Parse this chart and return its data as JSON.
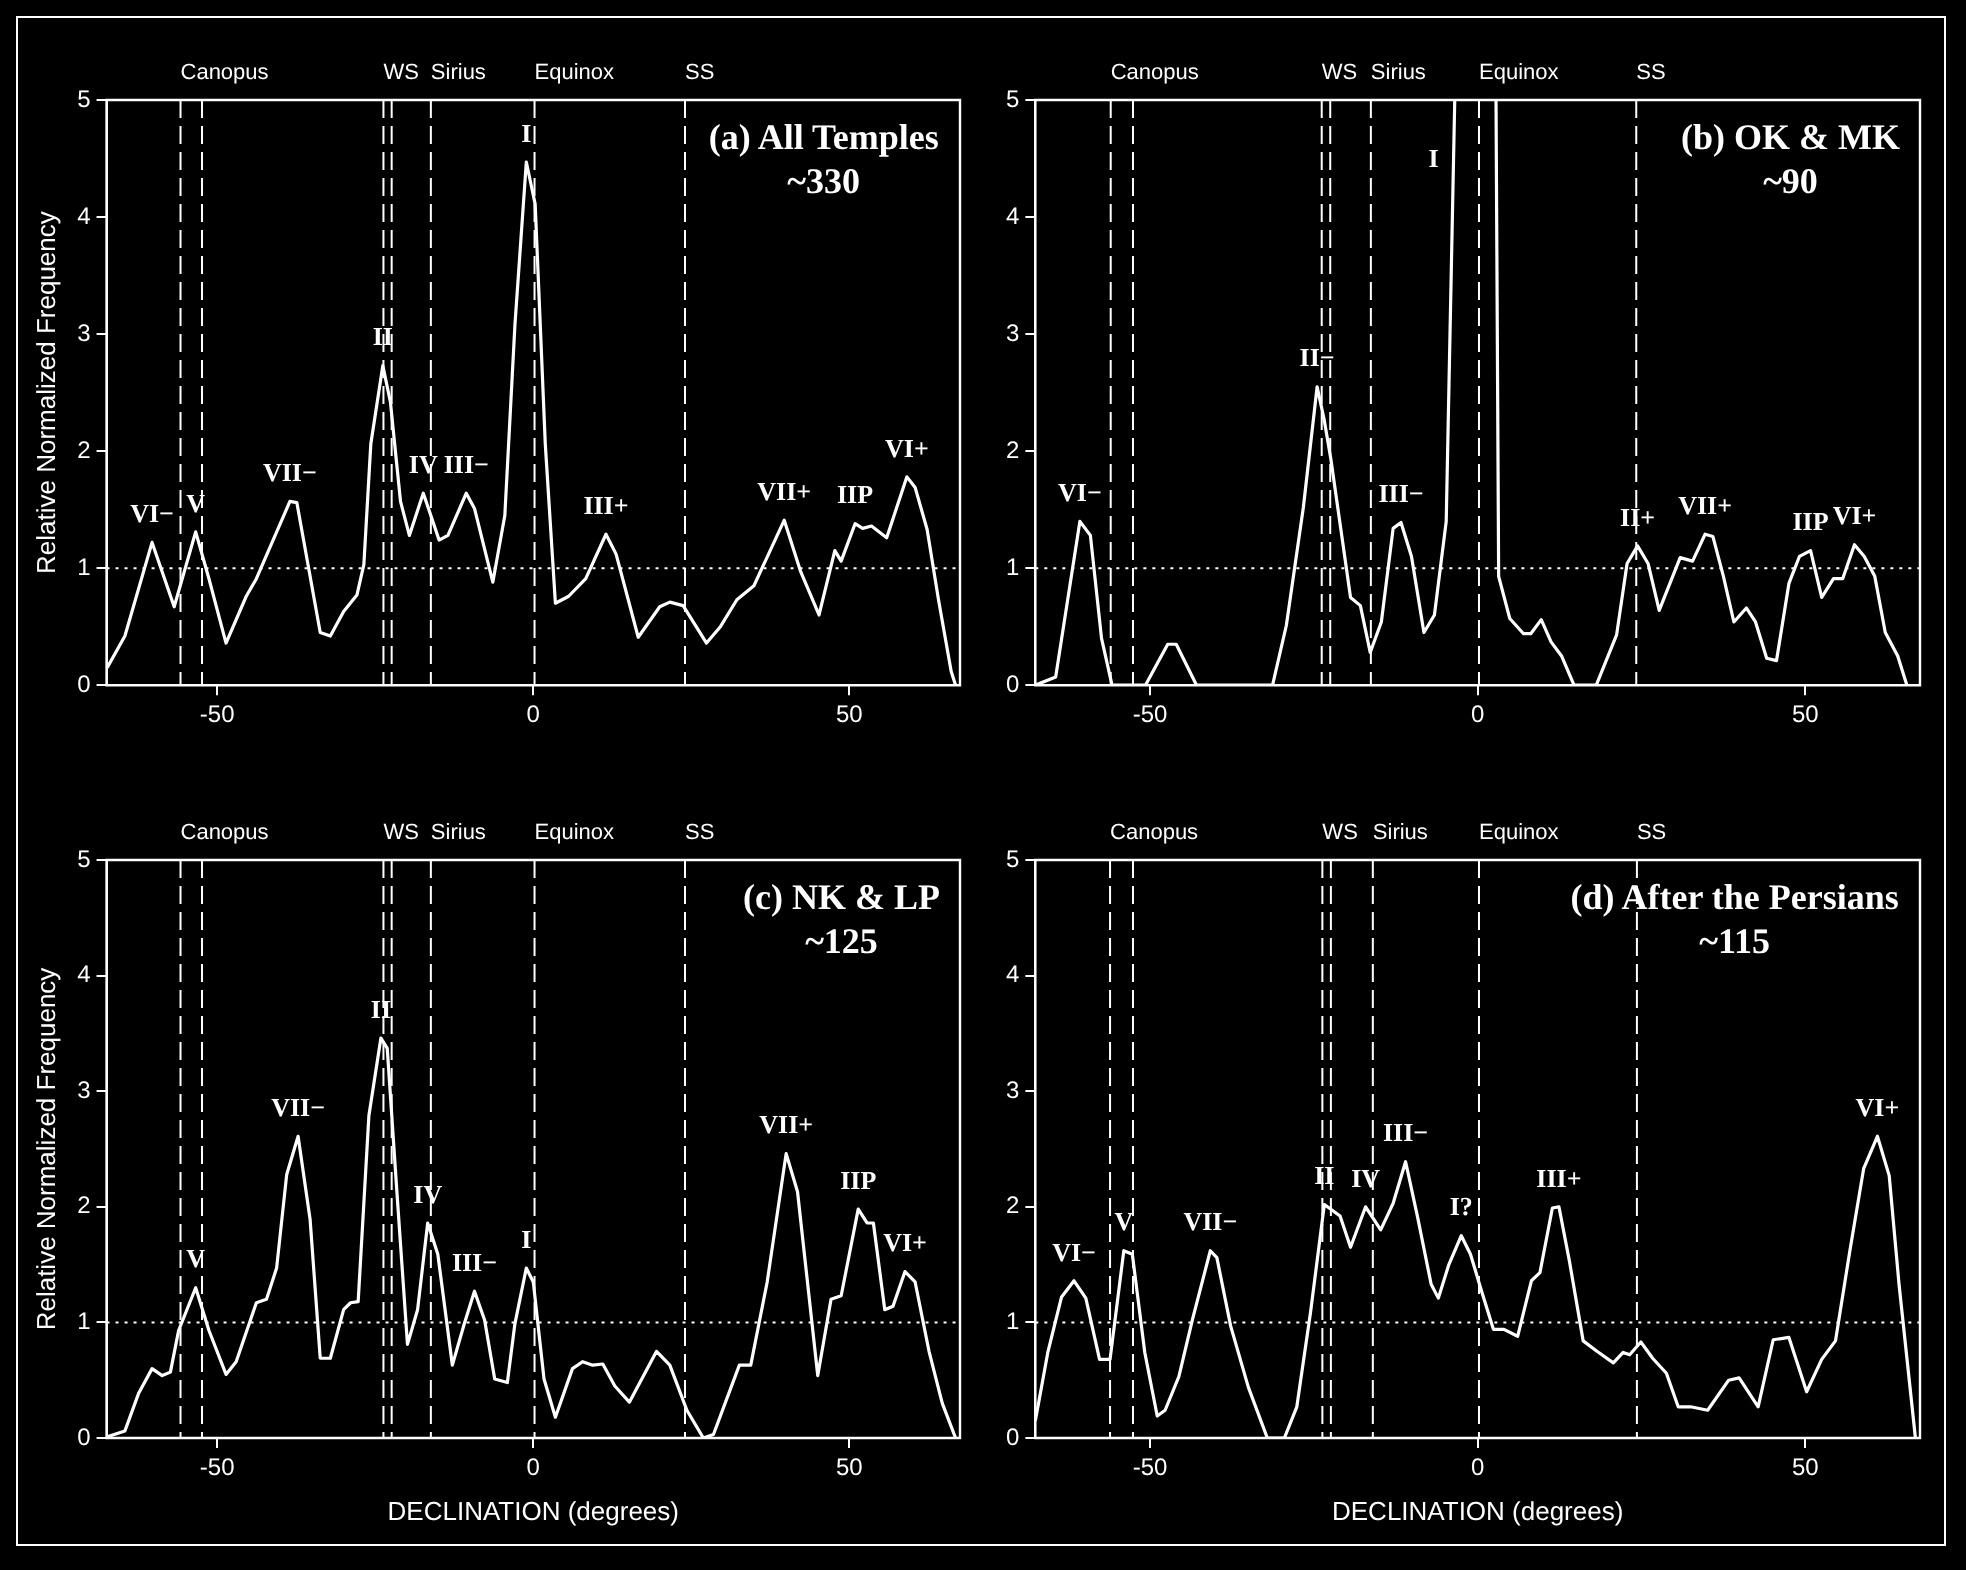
{
  "chart_data": [
    {
      "type": "line",
      "title": "(a) All Temples",
      "subtitle": "~330",
      "ylabel": "Relative Normalized Frequency",
      "xlim": [
        -67.5,
        67.5
      ],
      "xticks": [
        -50,
        0,
        50
      ],
      "ylim": [
        0,
        5
      ],
      "yticks": [
        0,
        1,
        2,
        3,
        4,
        5
      ],
      "series": [
        {
          "color": "#ffffff",
          "x": [
            -67.4,
            -64.6,
            -60.3,
            -56.8,
            -53.4,
            -51.3,
            -48.6,
            -45.4,
            -43.8,
            -38.5,
            -37.4,
            -33.7,
            -32.1,
            -30,
            -27.9,
            -26.8,
            -25.7,
            -23.8,
            -22.6,
            -21,
            -19.6,
            -17.4,
            -16.2,
            -14.9,
            -13.5,
            -10.6,
            -9.3,
            -6.4,
            -4.5,
            -2.9,
            -1.1,
            0.3,
            1.9,
            3.5,
            5.6,
            8.3,
            11.5,
            13.1,
            16.6,
            20,
            21.6,
            23.7,
            27.4,
            29.6,
            32.2,
            34.9,
            39.7,
            42.3,
            45.2,
            47.7,
            48.7,
            50.9,
            52.1,
            53.5,
            55.9,
            59.1,
            60.4,
            62.3,
            64.1,
            66.1,
            66.8
          ],
          "values": [
            0.15,
            0.42,
            1.22,
            0.67,
            1.31,
            0.91,
            0.36,
            0.76,
            0.91,
            1.57,
            1.56,
            0.45,
            0.42,
            0.63,
            0.77,
            1.03,
            2.06,
            2.73,
            2.42,
            1.57,
            1.28,
            1.64,
            1.45,
            1.24,
            1.28,
            1.64,
            1.51,
            0.88,
            1.45,
            3.08,
            4.47,
            4.11,
            2.06,
            0.7,
            0.76,
            0.91,
            1.29,
            1.12,
            0.41,
            0.67,
            0.71,
            0.68,
            0.36,
            0.5,
            0.73,
            0.85,
            1.41,
            0.97,
            0.6,
            1.15,
            1.06,
            1.38,
            1.34,
            1.36,
            1.26,
            1.78,
            1.69,
            1.33,
            0.73,
            0.12,
            0
          ]
        }
      ],
      "ref_lines": [
        {
          "axis": "x",
          "value": -55.8,
          "label": "Canopus",
          "line_style": "dashed"
        },
        {
          "axis": "x",
          "value": -52.4,
          "line_style": "dashed"
        },
        {
          "axis": "x",
          "value": -23.7,
          "label": "WS",
          "line_style": "dashed"
        },
        {
          "axis": "x",
          "value": -22.4,
          "line_style": "dashed"
        },
        {
          "axis": "x",
          "value": -16.2,
          "label": "Sirius",
          "line_style": "dashed"
        },
        {
          "axis": "x",
          "value": 0.2,
          "label": "Equinox",
          "line_style": "dashed"
        },
        {
          "axis": "x",
          "value": 24,
          "label": "SS",
          "line_style": "dashed"
        },
        {
          "axis": "y",
          "value": 1,
          "line_style": "dotted"
        }
      ],
      "annotations": [
        {
          "text": "VI−",
          "x": -60.3,
          "y": 1.22
        },
        {
          "text": "V",
          "x": -53.4,
          "y": 1.31
        },
        {
          "text": "VII−",
          "x": -38.5,
          "y": 1.57
        },
        {
          "text": "II",
          "x": -23.8,
          "y": 2.73
        },
        {
          "text": "IV",
          "x": -17.4,
          "y": 1.64
        },
        {
          "text": "III−",
          "x": -10.6,
          "y": 1.64
        },
        {
          "text": "I",
          "x": -1.1,
          "y": 4.47
        },
        {
          "text": "III+",
          "x": 11.5,
          "y": 1.29
        },
        {
          "text": "VII+",
          "x": 39.7,
          "y": 1.41
        },
        {
          "text": "IIP",
          "x": 50.9,
          "y": 1.38
        },
        {
          "text": "VI+",
          "x": 59.1,
          "y": 1.78
        }
      ]
    },
    {
      "type": "line",
      "title": "(b) OK & MK",
      "subtitle": "~90",
      "xlim": [
        -67.5,
        67.5
      ],
      "xticks": [
        -50,
        0,
        50
      ],
      "ylim": [
        0,
        5
      ],
      "yticks": [
        0,
        1,
        2,
        3,
        4,
        5
      ],
      "series": [
        {
          "color": "#ffffff",
          "x": [
            -67.5,
            -64.4,
            -60.7,
            -59.1,
            -57.4,
            -55.8,
            -50.7,
            -47.3,
            -46,
            -42.9,
            -31.3,
            -29.2,
            -26.6,
            -24.5,
            -23.4,
            -22.4,
            -19.4,
            -17.9,
            -16.4,
            -14.7,
            -12.9,
            -11.7,
            -10.1,
            -8.2,
            -6.6,
            -4.8,
            -3.5,
            0,
            2.8,
            3.2,
            4.9,
            7,
            8.1,
            9.7,
            11.2,
            12.8,
            14.7,
            18.1,
            21.2,
            22.8,
            24.4,
            26,
            27.7,
            30.9,
            32.8,
            34.7,
            35.9,
            37.5,
            39.1,
            41,
            42.4,
            44.1,
            45.6,
            47.5,
            49.1,
            50.8,
            52.5,
            54.3,
            55.7,
            57.5,
            59,
            60.6,
            62.2,
            64.1,
            65.5
          ],
          "values": [
            0,
            0.07,
            1.4,
            1.28,
            0.4,
            0,
            0,
            0.35,
            0.35,
            0,
            0,
            0.51,
            1.52,
            2.55,
            2.26,
            1.93,
            0.75,
            0.68,
            0.28,
            0.54,
            1.34,
            1.39,
            1.1,
            0.45,
            0.6,
            1.4,
            5,
            null,
            5,
            0.93,
            0.57,
            0.44,
            0.44,
            0.56,
            0.37,
            0.25,
            0,
            0,
            0.43,
            1.04,
            1.19,
            1.04,
            0.64,
            1.09,
            1.06,
            1.29,
            1.27,
            0.93,
            0.54,
            0.66,
            0.54,
            0.23,
            0.21,
            0.87,
            1.1,
            1.15,
            0.75,
            0.91,
            0.91,
            1.2,
            1.1,
            0.93,
            0.45,
            0.25,
            0
          ]
        }
      ],
      "ref_lines": [
        {
          "axis": "x",
          "value": -56,
          "label": "Canopus",
          "line_style": "dashed"
        },
        {
          "axis": "x",
          "value": -52.6,
          "line_style": "dashed"
        },
        {
          "axis": "x",
          "value": -23.8,
          "label": "WS",
          "line_style": "dashed"
        },
        {
          "axis": "x",
          "value": -22.5,
          "line_style": "dashed"
        },
        {
          "axis": "x",
          "value": -16.3,
          "label": "Sirius",
          "line_style": "dashed"
        },
        {
          "axis": "x",
          "value": 0.2,
          "label": "Equinox",
          "line_style": "dashed"
        },
        {
          "axis": "x",
          "value": 24.2,
          "label": "SS",
          "line_style": "dashed"
        },
        {
          "axis": "y",
          "value": 1,
          "line_style": "dotted"
        }
      ],
      "annotations": [
        {
          "text": "VI−",
          "x": -60.7,
          "y": 1.4
        },
        {
          "text": "II−",
          "x": -24.5,
          "y": 2.55
        },
        {
          "text": "III−",
          "x": -11.7,
          "y": 1.39
        },
        {
          "text": "I",
          "x": -3.5,
          "y": 5
        },
        {
          "text": "II+",
          "x": 24.4,
          "y": 1.19
        },
        {
          "text": "VII+",
          "x": 34.7,
          "y": 1.29
        },
        {
          "text": "IIP",
          "x": 50.8,
          "y": 1.15
        },
        {
          "text": "VI+",
          "x": 57.5,
          "y": 1.2
        }
      ]
    },
    {
      "type": "line",
      "title": "(c) NK & LP",
      "subtitle": "~125",
      "xlabel": "DECLINATION (degrees)",
      "ylabel": "Relative Normalized Frequency",
      "xlim": [
        -67.5,
        67.5
      ],
      "xticks": [
        -50,
        0,
        50
      ],
      "ylim": [
        0,
        5
      ],
      "yticks": [
        0,
        1,
        2,
        3,
        4,
        5
      ],
      "series": [
        {
          "color": "#ffffff",
          "x": [
            -67.4,
            -64.6,
            -62.4,
            -60.3,
            -58.7,
            -57.4,
            -56.1,
            -53.4,
            -51.3,
            -48.6,
            -47,
            -43.8,
            -42.2,
            -40.6,
            -39,
            -37.2,
            -35.3,
            -33.7,
            -32.1,
            -30,
            -28.9,
            -27.7,
            -26,
            -24.1,
            -23.1,
            -21.5,
            -19.9,
            -18.3,
            -16.7,
            -15.1,
            -12.8,
            -10.9,
            -9.3,
            -7.7,
            -6.1,
            -4.1,
            -2.9,
            -1.1,
            0,
            1.7,
            3.5,
            6.2,
            7.8,
            9.4,
            11,
            12.9,
            15.2,
            19.5,
            21.6,
            24.3,
            26.9,
            28.5,
            32.6,
            34.4,
            37,
            40,
            41.8,
            45,
            47.1,
            48.7,
            51.4,
            52.8,
            53.8,
            55.6,
            56.9,
            58.8,
            60.4,
            62.6,
            64.7,
            66.8
          ],
          "values": [
            0.01,
            0.06,
            0.39,
            0.6,
            0.54,
            0.57,
            0.93,
            1.3,
            0.93,
            0.55,
            0.66,
            1.17,
            1.2,
            1.47,
            2.28,
            2.61,
            1.89,
            0.69,
            0.69,
            1.11,
            1.17,
            1.18,
            2.79,
            3.46,
            3.37,
            2.07,
            0.81,
            1.11,
            1.86,
            1.59,
            0.63,
            0.99,
            1.27,
            1.02,
            0.51,
            0.48,
            0.99,
            1.47,
            1.35,
            0.51,
            0.18,
            0.6,
            0.66,
            0.63,
            0.64,
            0.45,
            0.31,
            0.75,
            0.63,
            0.24,
            0,
            0.03,
            0.63,
            0.63,
            1.35,
            2.46,
            2.13,
            0.54,
            1.2,
            1.23,
            1.98,
            1.86,
            1.86,
            1.11,
            1.14,
            1.44,
            1.35,
            0.75,
            0.3,
            0
          ]
        }
      ],
      "ref_lines": [
        {
          "axis": "x",
          "value": -55.8,
          "label": "Canopus",
          "line_style": "dashed"
        },
        {
          "axis": "x",
          "value": -52.4,
          "line_style": "dashed"
        },
        {
          "axis": "x",
          "value": -23.7,
          "label": "WS",
          "line_style": "dashed"
        },
        {
          "axis": "x",
          "value": -22.4,
          "line_style": "dashed"
        },
        {
          "axis": "x",
          "value": -16.2,
          "label": "Sirius",
          "line_style": "dashed"
        },
        {
          "axis": "x",
          "value": 0.2,
          "label": "Equinox",
          "line_style": "dashed"
        },
        {
          "axis": "x",
          "value": 24,
          "label": "SS",
          "line_style": "dashed"
        },
        {
          "axis": "y",
          "value": 1,
          "line_style": "dotted"
        }
      ],
      "annotations": [
        {
          "text": "V",
          "x": -53.4,
          "y": 1.3
        },
        {
          "text": "VII−",
          "x": -37.2,
          "y": 2.61
        },
        {
          "text": "II",
          "x": -24.1,
          "y": 3.46
        },
        {
          "text": "IV",
          "x": -16.7,
          "y": 1.86
        },
        {
          "text": "III−",
          "x": -9.3,
          "y": 1.27
        },
        {
          "text": "I",
          "x": -1.1,
          "y": 1.47
        },
        {
          "text": "VII+",
          "x": 40,
          "y": 2.46
        },
        {
          "text": "IIP",
          "x": 51.4,
          "y": 1.98
        },
        {
          "text": "VI+",
          "x": 58.8,
          "y": 1.44
        }
      ]
    },
    {
      "type": "line",
      "title": "(d) After the Persians",
      "subtitle": "~115",
      "xlabel": "DECLINATION (degrees)",
      "xlim": [
        -67.5,
        67.5
      ],
      "xticks": [
        -50,
        0,
        50
      ],
      "ylim": [
        0,
        5
      ],
      "yticks": [
        0,
        1,
        2,
        3,
        4,
        5
      ],
      "series": [
        {
          "color": "#ffffff",
          "x": [
            -67.5,
            -65.6,
            -63.5,
            -61.6,
            -59.8,
            -57.7,
            -56.1,
            -54,
            -52.7,
            -50.8,
            -48.9,
            -47.7,
            -45.6,
            -43.5,
            -40.8,
            -39.8,
            -37.7,
            -35,
            -32.1,
            -29.5,
            -27.6,
            -25.5,
            -23.4,
            -21,
            -19.4,
            -17.1,
            -14.8,
            -12.9,
            -11,
            -9.2,
            -7.1,
            -6,
            -4.4,
            -2.5,
            -1.1,
            0.6,
            2.4,
            4,
            6.1,
            8.2,
            9.5,
            11.4,
            12.4,
            14,
            16.1,
            18.2,
            20.7,
            22.2,
            23.2,
            24.9,
            26.7,
            28.8,
            30.6,
            32.5,
            35.1,
            38.3,
            39.9,
            42.8,
            45.1,
            47.5,
            50.2,
            52.5,
            54.6,
            56.8,
            58.9,
            61,
            62.8,
            64.3,
            66.8
          ],
          "values": [
            0.15,
            0.74,
            1.22,
            1.36,
            1.21,
            0.68,
            0.68,
            1.62,
            1.59,
            0.74,
            0.19,
            0.24,
            0.53,
            1.03,
            1.62,
            1.56,
            0.97,
            0.44,
            0,
            0,
            0.27,
            1.09,
            2.02,
            1.92,
            1.65,
            2.0,
            1.8,
            2.03,
            2.39,
            1.92,
            1.33,
            1.21,
            1.5,
            1.75,
            1.59,
            1.27,
            0.94,
            0.94,
            0.88,
            1.36,
            1.43,
            1.99,
            2.0,
            1.53,
            0.84,
            0.75,
            0.65,
            0.74,
            0.72,
            0.83,
            0.69,
            0.56,
            0.27,
            0.27,
            0.24,
            0.5,
            0.52,
            0.27,
            0.85,
            0.87,
            0.4,
            0.68,
            0.84,
            1.62,
            2.33,
            2.61,
            2.27,
            1.33,
            0
          ]
        }
      ],
      "ref_lines": [
        {
          "axis": "x",
          "value": -56.1,
          "label": "Canopus",
          "line_style": "dashed"
        },
        {
          "axis": "x",
          "value": -52.6,
          "line_style": "dashed"
        },
        {
          "axis": "x",
          "value": -23.7,
          "label": "WS",
          "line_style": "dashed"
        },
        {
          "axis": "x",
          "value": -22.4,
          "line_style": "dashed"
        },
        {
          "axis": "x",
          "value": -16,
          "label": "Sirius",
          "line_style": "dashed"
        },
        {
          "axis": "x",
          "value": 0.2,
          "label": "Equinox",
          "line_style": "dashed"
        },
        {
          "axis": "x",
          "value": 24.3,
          "label": "SS",
          "line_style": "dashed"
        },
        {
          "axis": "y",
          "value": 1,
          "line_style": "dotted"
        }
      ],
      "annotations": [
        {
          "text": "VI−",
          "x": -61.6,
          "y": 1.36
        },
        {
          "text": "V",
          "x": -54,
          "y": 1.62
        },
        {
          "text": "VII−",
          "x": -40.8,
          "y": 1.62
        },
        {
          "text": "II",
          "x": -23.4,
          "y": 2.02
        },
        {
          "text": "IV",
          "x": -17.1,
          "y": 2.0
        },
        {
          "text": "III−",
          "x": -11,
          "y": 2.39
        },
        {
          "text": "I?",
          "x": -2.5,
          "y": 1.75
        },
        {
          "text": "III+",
          "x": 12.4,
          "y": 2.0
        },
        {
          "text": "VI+",
          "x": 61,
          "y": 2.61
        }
      ]
    }
  ]
}
